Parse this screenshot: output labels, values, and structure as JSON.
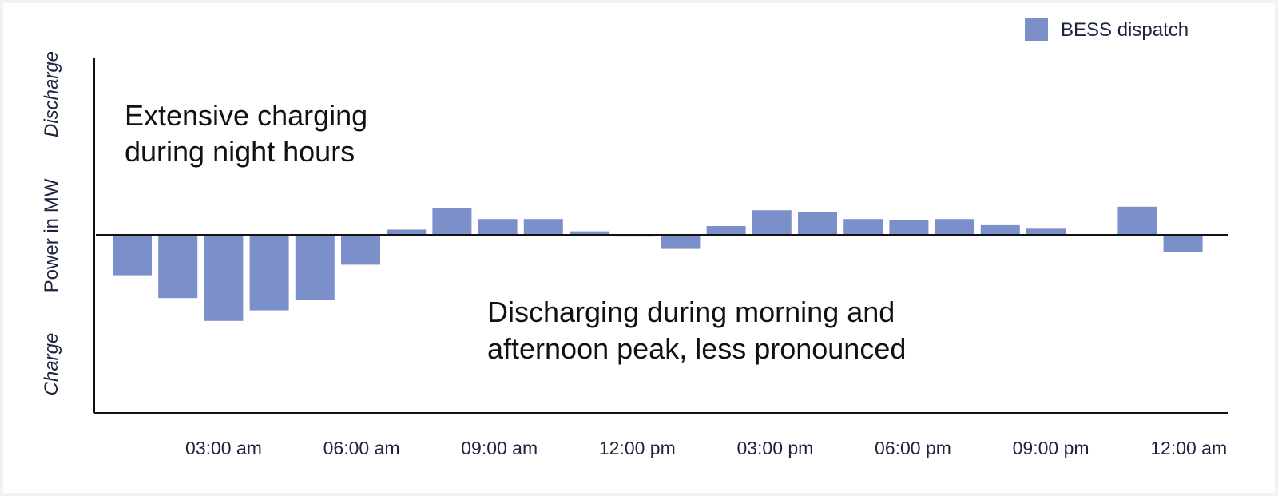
{
  "chart_data": {
    "type": "bar",
    "legend": {
      "position": "top-right",
      "entries": [
        {
          "name": "BESS dispatch",
          "color": "#7b8fcb"
        }
      ]
    },
    "ylabel": "Power in MW",
    "ylabel_top": "Discharge",
    "ylabel_bottom": "Charge",
    "x_ticks": [
      "03:00 am",
      "06:00 am",
      "09:00 am",
      "12:00 pm",
      "03:00 pm",
      "06:00 pm",
      "09:00 pm",
      "12:00 am"
    ],
    "grid": false,
    "ylim": [
      -1,
      1
    ],
    "series": [
      {
        "name": "BESS dispatch",
        "color": "#7b8fcb",
        "values": [
          -0.23,
          -0.36,
          -0.49,
          -0.43,
          -0.37,
          -0.17,
          0.03,
          0.15,
          0.09,
          0.09,
          0.02,
          -0.01,
          -0.08,
          0.05,
          0.14,
          0.13,
          0.09,
          0.085,
          0.09,
          0.055,
          0.035,
          0.0,
          0.16,
          -0.1
        ]
      }
    ],
    "annotations": [
      {
        "lines": [
          "Extensive charging",
          "during night hours"
        ]
      },
      {
        "lines": [
          "Discharging during morning and",
          "afternoon peak, less pronounced"
        ]
      }
    ]
  }
}
